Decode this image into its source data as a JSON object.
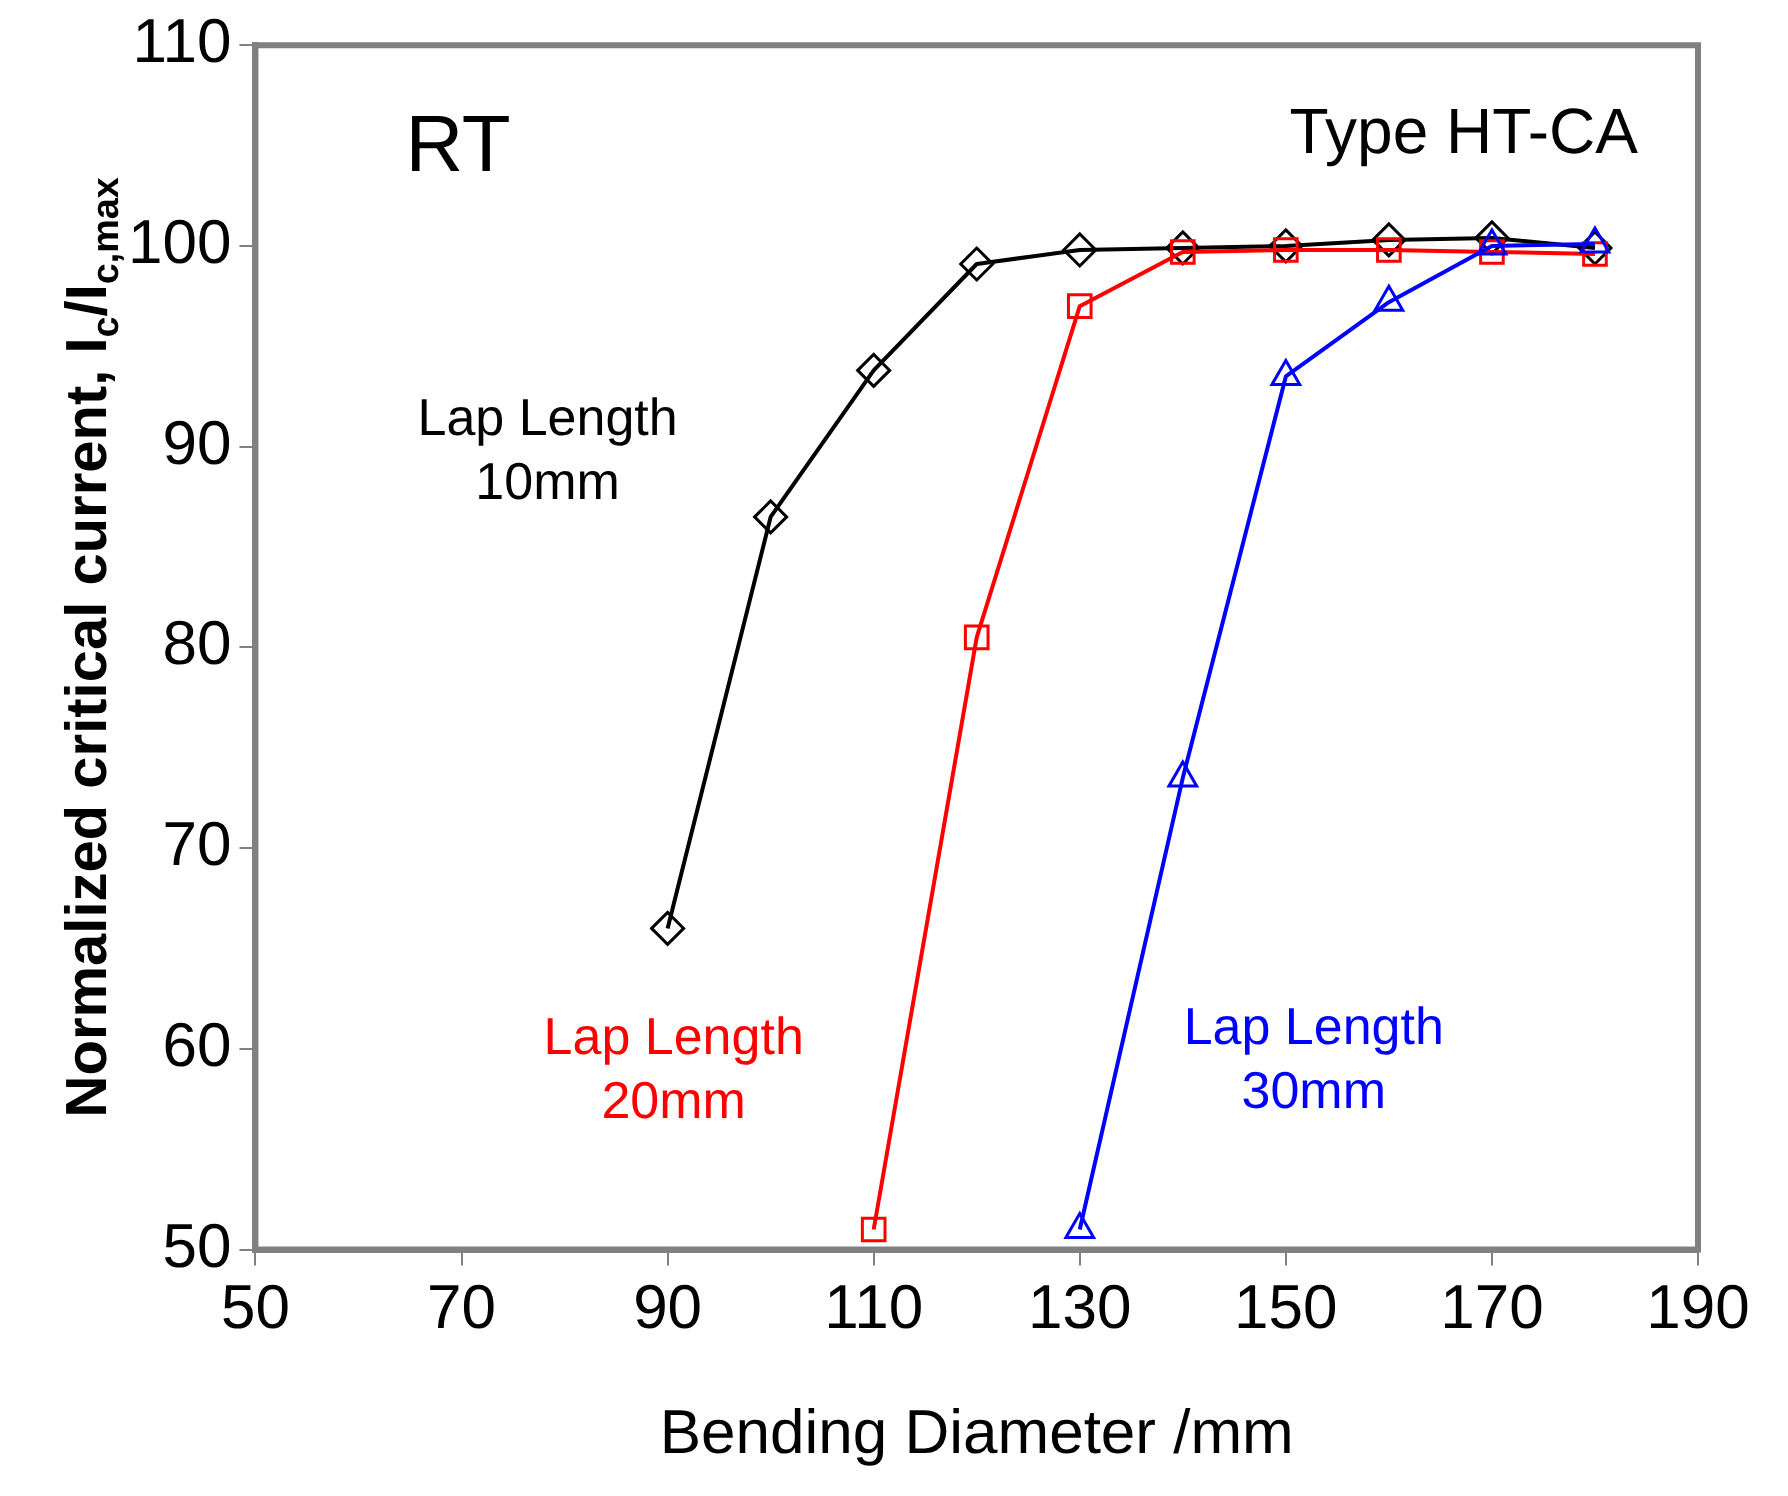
{
  "chart_data": {
    "type": "line",
    "xlabel": "Bending Diameter /mm",
    "ylabel": "Normalized critical current, I$_{c}$/I$_{c,max}$",
    "xlim": [
      50,
      190
    ],
    "xticks": [
      50,
      70,
      90,
      110,
      130,
      150,
      170,
      190
    ],
    "ylim": [
      50,
      110
    ],
    "yticks": [
      50,
      60,
      70,
      80,
      90,
      100,
      110
    ],
    "grid": false,
    "legend": false,
    "annotations": [
      "RT",
      "Type HT-CA"
    ],
    "series": [
      {
        "name": "Lap Length 10mm",
        "color": "#000000",
        "marker": "diamond",
        "x": [
          90,
          100,
          110,
          120,
          130,
          140,
          150,
          160,
          170,
          180
        ],
        "values": [
          66,
          86.5,
          93.8,
          99.1,
          99.8,
          99.9,
          100,
          100.3,
          100.4,
          99.9
        ]
      },
      {
        "name": "Lap Length 20mm",
        "color": "#ff0000",
        "marker": "square",
        "x": [
          110,
          120,
          130,
          140,
          150,
          160,
          170,
          180
        ],
        "values": [
          51,
          80.5,
          97,
          99.7,
          99.8,
          99.8,
          99.7,
          99.6
        ]
      },
      {
        "name": "Lap Length 30mm",
        "color": "#0000ff",
        "marker": "triangle",
        "x": [
          130,
          140,
          150,
          160,
          170,
          180
        ],
        "values": [
          51,
          73.5,
          93.5,
          97.2,
          100,
          100.1
        ]
      }
    ]
  }
}
